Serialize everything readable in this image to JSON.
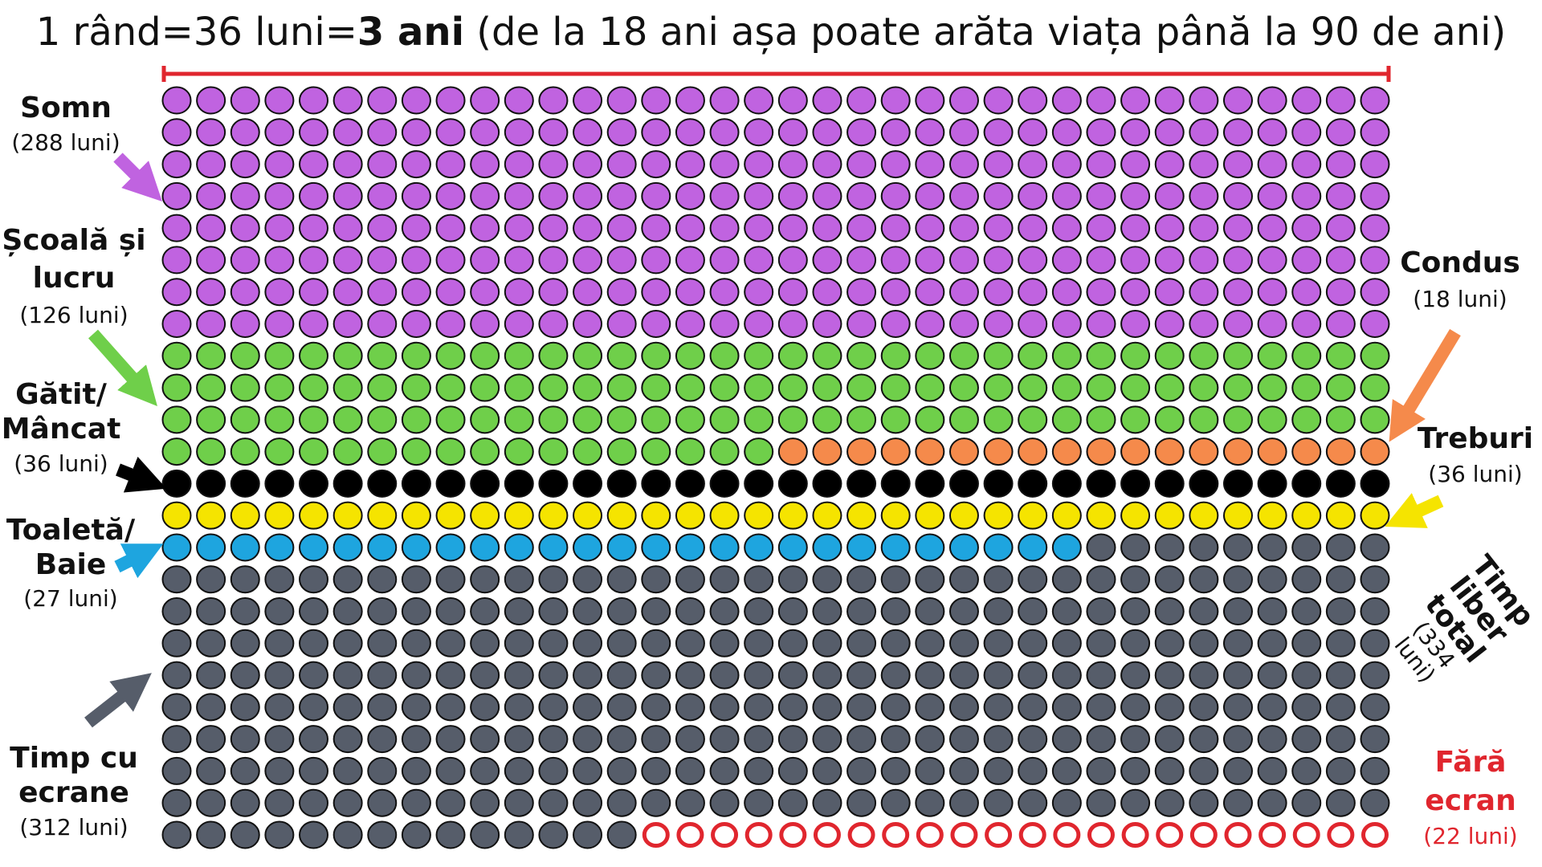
{
  "title": {
    "part1": "1 rând=36 luni=",
    "part_bold": "3 ani",
    "part2": " (de la 18 ani așa poate arăta viața până la 90 de ani)"
  },
  "labels": {
    "somn": {
      "name": "Somn",
      "count": "(288 luni)"
    },
    "scoala": {
      "name1": "Școală și",
      "name2": "lucru",
      "count": "(126 luni)"
    },
    "gatit": {
      "name1": "Gătit/",
      "name2": "Mâncat",
      "count": "(36 luni)"
    },
    "toaleta": {
      "name1": "Toaletă/",
      "name2": "Baie",
      "count": "(27 luni)"
    },
    "ecrane": {
      "name1": "Timp cu",
      "name2": "ecrane",
      "count": "(312 luni)"
    },
    "condus": {
      "name": "Condus",
      "count": "(18 luni)"
    },
    "treburi": {
      "name": "Treburi",
      "count": "(36 luni)"
    },
    "liber": {
      "name1": "Timp",
      "name2": "liber total",
      "count": "(334 luni)"
    },
    "fara": {
      "name1": "Fără",
      "name2": "ecran",
      "count": "(22 luni)"
    }
  },
  "chart_data": {
    "type": "waffle",
    "columns": 36,
    "rows": 24,
    "unit": "luni",
    "categories": [
      {
        "name": "Somn",
        "value": 288,
        "color": "#c063e0"
      },
      {
        "name": "Școală și lucru",
        "value": 126,
        "color": "#6fcf4a"
      },
      {
        "name": "Condus",
        "value": 18,
        "color": "#f58a4b"
      },
      {
        "name": "Gătit/Mâncat",
        "value": 36,
        "color": "#000000"
      },
      {
        "name": "Treburi",
        "value": 36,
        "color": "#f5e400"
      },
      {
        "name": "Toaletă/Baie",
        "value": 27,
        "color": "#1ea5df"
      },
      {
        "name": "Timp cu ecrane",
        "value": 312,
        "color": "#565d6a"
      },
      {
        "name": "Fără ecran",
        "value": 22,
        "color": "#e0262e",
        "outline": true
      }
    ],
    "accent_color": "#e0262e"
  }
}
